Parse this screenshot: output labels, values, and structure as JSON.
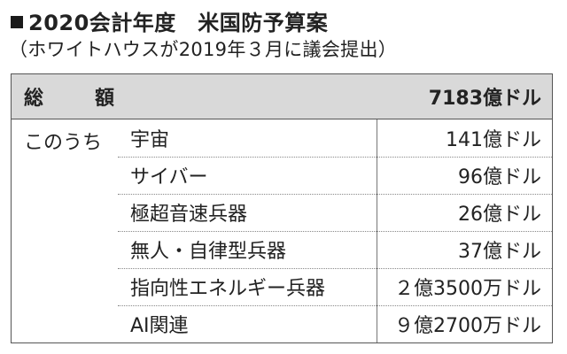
{
  "header": {
    "title": "2020会計年度　米国防予算案",
    "subtitle": "（ホワイトハウスが2019年３月に議会提出）"
  },
  "table": {
    "total_label": "総　額",
    "total_value": "7183億ドル",
    "group_label": "このうち",
    "rows": [
      {
        "name": "宇宙",
        "value": "141億ドル"
      },
      {
        "name": "サイバー",
        "value": "96億ドル"
      },
      {
        "name": "極超音速兵器",
        "value": "26億ドル"
      },
      {
        "name": "無人・自律型兵器",
        "value": "37億ドル"
      },
      {
        "name": "指向性エネルギー兵器",
        "value": "２億3500万ドル"
      },
      {
        "name": "AI関連",
        "value": "９億2700万ドル"
      }
    ]
  }
}
